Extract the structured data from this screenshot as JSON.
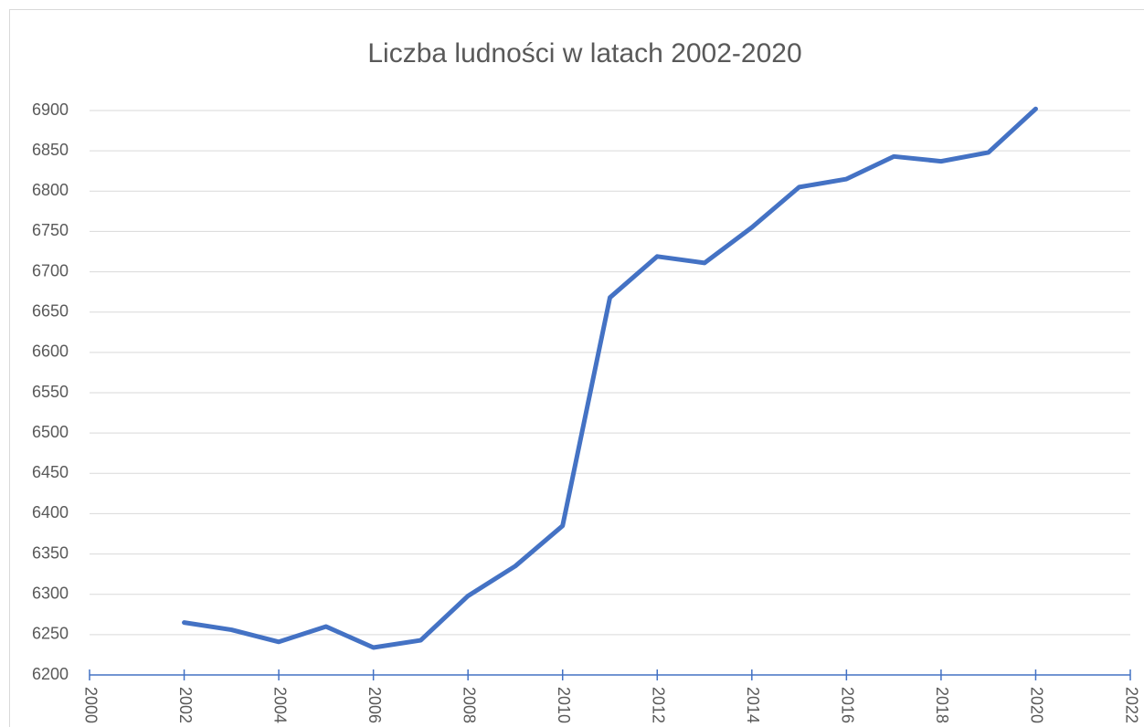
{
  "chart_data": {
    "type": "line",
    "title": "Liczba ludności w latach 2002-2020",
    "x": [
      2002,
      2003,
      2004,
      2005,
      2006,
      2007,
      2008,
      2009,
      2010,
      2011,
      2012,
      2013,
      2014,
      2015,
      2016,
      2017,
      2018,
      2019,
      2020
    ],
    "series": [
      {
        "name": "Liczba ludności",
        "color": "#4472c4",
        "values": [
          6265,
          6256,
          6241,
          6260,
          6234,
          6243,
          6298,
          6335,
          6385,
          6668,
          6719,
          6711,
          6755,
          6805,
          6815,
          6843,
          6837,
          6848,
          6902
        ]
      }
    ],
    "xlim": [
      2000,
      2022
    ],
    "xticks": [
      2000,
      2002,
      2004,
      2006,
      2008,
      2010,
      2012,
      2014,
      2016,
      2018,
      2020,
      2022
    ],
    "ylim": [
      6200,
      6900
    ],
    "yticks": [
      6200,
      6250,
      6300,
      6350,
      6400,
      6450,
      6500,
      6550,
      6600,
      6650,
      6700,
      6750,
      6800,
      6850,
      6900
    ],
    "grid": true
  }
}
